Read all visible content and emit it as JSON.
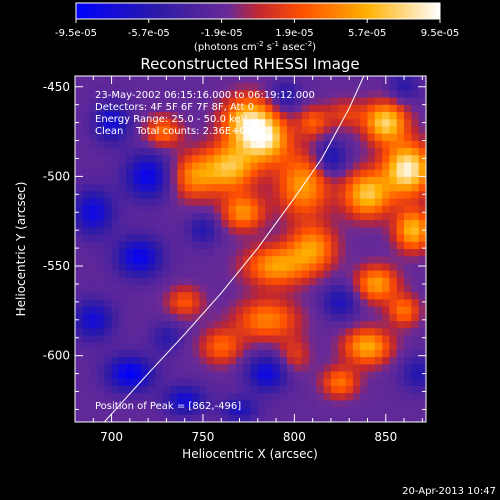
{
  "chart_data": {
    "type": "heatmap",
    "title": "Reconstructed RHESSI Image",
    "xlabel": "Heliocentric X (arcsec)",
    "ylabel": "Heliocentric Y (arcsec)",
    "xlim": [
      680,
      872
    ],
    "ylim": [
      -637,
      -444
    ],
    "x_ticks": [
      "700",
      "750",
      "800",
      "850"
    ],
    "y_ticks": [
      "-450",
      "-500",
      "-550",
      "-600"
    ],
    "colorbar": {
      "min": -9.5e-05,
      "max": 9.5e-05,
      "tick_labels": [
        "-9.5e-05",
        "-5.7e-05",
        "-1.9e-05",
        "1.9e-05",
        "5.7e-05",
        "9.5e-05"
      ],
      "unit_prefix": "(photons cm",
      "unit_exp1": "-2",
      "unit_mid": " s",
      "unit_exp2": "-1",
      "unit_mid2": " asec",
      "unit_exp3": "-2",
      "unit_suffix": ")"
    },
    "info_lines": [
      "23-May-2002 06:15:16.000 to 06:19:12.000",
      "Detectors: 4F 5F 6F 7F 8F, Att 0",
      "Energy Range: 25.0 - 50.0 keV",
      "Clean    Total counts: 2.36E+03"
    ],
    "peak_label": "Position of Peak = [862,-496]",
    "limb_points": [
      [
        696,
        -637
      ],
      [
        720,
        -610
      ],
      [
        740,
        -588
      ],
      [
        760,
        -565
      ],
      [
        780,
        -540
      ],
      [
        800,
        -512
      ],
      [
        815,
        -490
      ],
      [
        830,
        -462
      ],
      [
        838,
        -444
      ]
    ],
    "blobs": [
      {
        "x": 775,
        "y": -470,
        "sx": 10,
        "sy": 10,
        "v": 0.85
      },
      {
        "x": 765,
        "y": -495,
        "sx": 10,
        "sy": 9,
        "v": 0.75
      },
      {
        "x": 785,
        "y": -480,
        "sx": 9,
        "sy": 9,
        "v": 0.7
      },
      {
        "x": 772,
        "y": -520,
        "sx": 8,
        "sy": 7,
        "v": 0.6
      },
      {
        "x": 745,
        "y": -500,
        "sx": 9,
        "sy": 9,
        "v": 0.55
      },
      {
        "x": 728,
        "y": -475,
        "sx": 7,
        "sy": 6,
        "v": 0.5
      },
      {
        "x": 805,
        "y": -505,
        "sx": 10,
        "sy": 12,
        "v": 0.65
      },
      {
        "x": 810,
        "y": -540,
        "sx": 9,
        "sy": 9,
        "v": 0.6
      },
      {
        "x": 790,
        "y": -550,
        "sx": 12,
        "sy": 8,
        "v": 0.65
      },
      {
        "x": 785,
        "y": -580,
        "sx": 12,
        "sy": 8,
        "v": 0.55
      },
      {
        "x": 760,
        "y": -595,
        "sx": 8,
        "sy": 7,
        "v": 0.45
      },
      {
        "x": 740,
        "y": -570,
        "sx": 7,
        "sy": 6,
        "v": 0.4
      },
      {
        "x": 800,
        "y": -600,
        "sx": 6,
        "sy": 7,
        "v": 0.3
      },
      {
        "x": 862,
        "y": -496,
        "sx": 9,
        "sy": 10,
        "v": 1.0
      },
      {
        "x": 850,
        "y": -470,
        "sx": 8,
        "sy": 8,
        "v": 0.85
      },
      {
        "x": 840,
        "y": -510,
        "sx": 9,
        "sy": 9,
        "v": 0.8
      },
      {
        "x": 865,
        "y": -530,
        "sx": 7,
        "sy": 8,
        "v": 0.75
      },
      {
        "x": 845,
        "y": -560,
        "sx": 8,
        "sy": 7,
        "v": 0.65
      },
      {
        "x": 860,
        "y": -575,
        "sx": 6,
        "sy": 6,
        "v": 0.5
      },
      {
        "x": 840,
        "y": -595,
        "sx": 9,
        "sy": 7,
        "v": 0.7
      },
      {
        "x": 825,
        "y": -615,
        "sx": 7,
        "sy": 6,
        "v": 0.5
      },
      {
        "x": 810,
        "y": -470,
        "sx": 6,
        "sy": 6,
        "v": 0.4
      },
      {
        "x": 828,
        "y": -465,
        "sx": 8,
        "sy": 6,
        "v": 0.3
      },
      {
        "x": 720,
        "y": -500,
        "sx": 9,
        "sy": 9,
        "v": -0.6
      },
      {
        "x": 700,
        "y": -470,
        "sx": 7,
        "sy": 8,
        "v": -0.5
      },
      {
        "x": 690,
        "y": -520,
        "sx": 8,
        "sy": 9,
        "v": -0.55
      },
      {
        "x": 715,
        "y": -545,
        "sx": 9,
        "sy": 8,
        "v": -0.6
      },
      {
        "x": 690,
        "y": -580,
        "sx": 8,
        "sy": 8,
        "v": -0.5
      },
      {
        "x": 710,
        "y": -610,
        "sx": 9,
        "sy": 7,
        "v": -0.65
      },
      {
        "x": 740,
        "y": -625,
        "sx": 8,
        "sy": 6,
        "v": -0.5
      },
      {
        "x": 785,
        "y": -610,
        "sx": 8,
        "sy": 7,
        "v": -0.55
      },
      {
        "x": 750,
        "y": -530,
        "sx": 6,
        "sy": 6,
        "v": -0.35
      },
      {
        "x": 730,
        "y": -590,
        "sx": 6,
        "sy": 6,
        "v": -0.3
      },
      {
        "x": 795,
        "y": -455,
        "sx": 6,
        "sy": 6,
        "v": -0.35
      },
      {
        "x": 820,
        "y": -490,
        "sx": 6,
        "sy": 7,
        "v": -0.45
      },
      {
        "x": 825,
        "y": -570,
        "sx": 7,
        "sy": 7,
        "v": -0.4
      },
      {
        "x": 868,
        "y": -610,
        "sx": 7,
        "sy": 7,
        "v": -0.35
      },
      {
        "x": 860,
        "y": -450,
        "sx": 6,
        "sy": 6,
        "v": -0.3
      },
      {
        "x": 770,
        "y": -630,
        "sx": 7,
        "sy": 5,
        "v": -0.4
      }
    ]
  },
  "footer": {
    "timestamp": "20-Apr-2013 10:47"
  }
}
